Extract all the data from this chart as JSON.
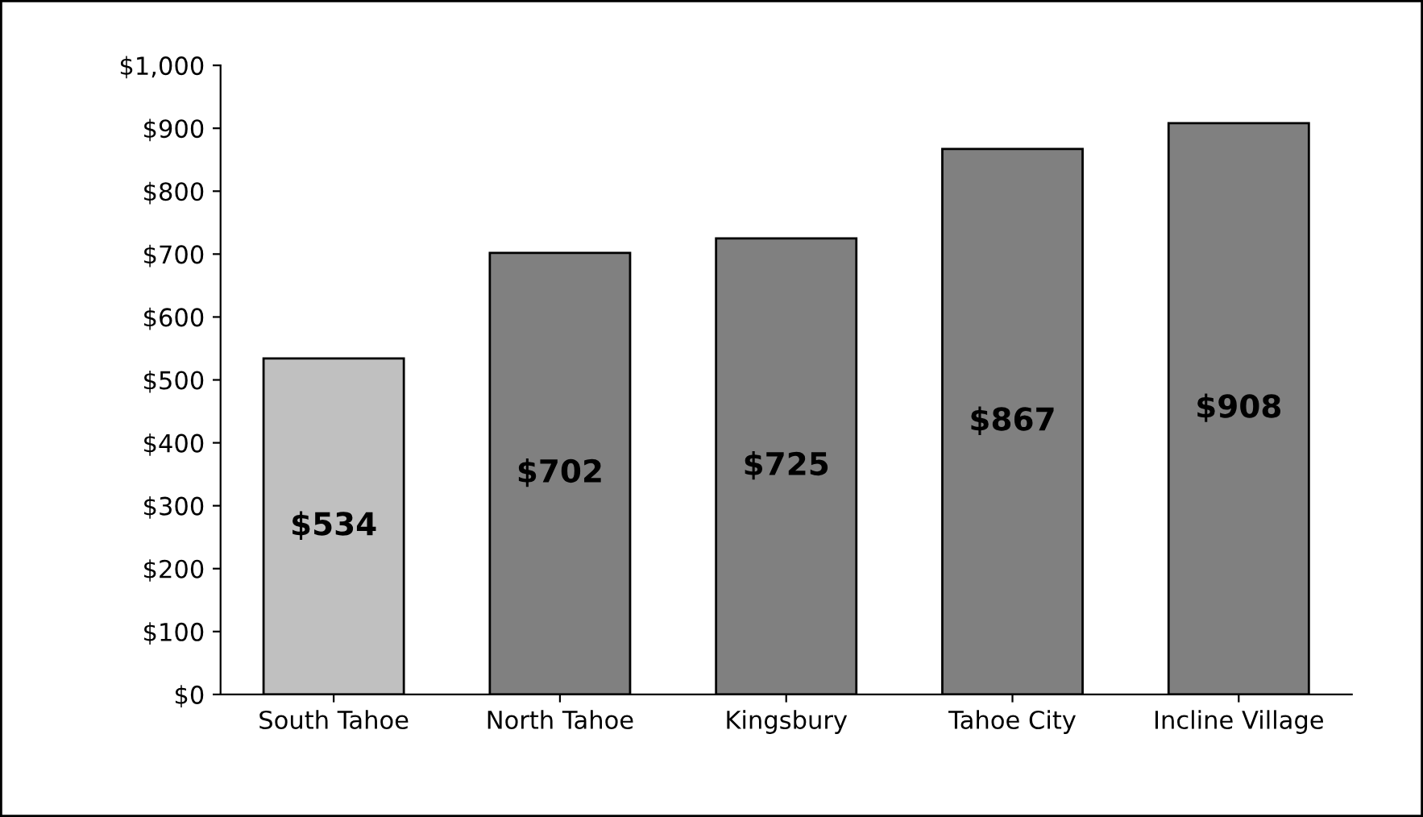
{
  "chart_data": {
    "type": "bar",
    "categories": [
      "South Tahoe",
      "North Tahoe",
      "Kingsbury",
      "Tahoe City",
      "Incline Village"
    ],
    "values": [
      534,
      702,
      725,
      867,
      908
    ],
    "colors": [
      "#c0c0c0",
      "#808080",
      "#808080",
      "#808080",
      "#808080"
    ],
    "value_labels": [
      "$534",
      "$702",
      "$725",
      "$867",
      "$908"
    ],
    "ylim": [
      0,
      1000
    ],
    "yticks": [
      {
        "value": 0,
        "label": "$0"
      },
      {
        "value": 100,
        "label": "$100"
      },
      {
        "value": 200,
        "label": "$200"
      },
      {
        "value": 300,
        "label": "$300"
      },
      {
        "value": 400,
        "label": "$400"
      },
      {
        "value": 500,
        "label": "$500"
      },
      {
        "value": 600,
        "label": "$600"
      },
      {
        "value": 700,
        "label": "$700"
      },
      {
        "value": 800,
        "label": "$800"
      },
      {
        "value": 900,
        "label": "$900"
      },
      {
        "value": 1000,
        "label": "$1,000"
      }
    ],
    "grid": false,
    "legend": false
  }
}
